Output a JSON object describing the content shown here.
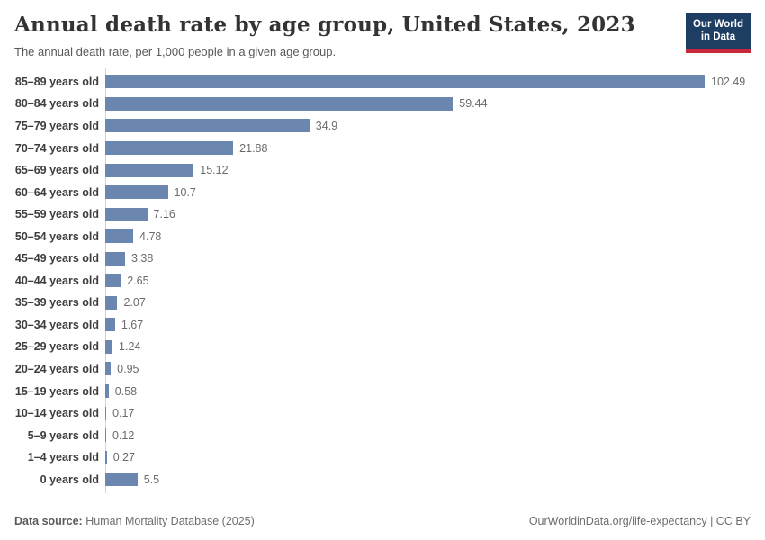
{
  "header": {
    "title": "Annual death rate by age group, United States, 2023",
    "subtitle": "The annual death rate, per 1,000 people in a given age group.",
    "logo": {
      "line1": "Our World",
      "line2": "in Data"
    }
  },
  "chart_data": {
    "type": "bar",
    "orientation": "horizontal",
    "title": "Annual death rate by age group, United States, 2023",
    "xlabel": "",
    "ylabel": "",
    "xlim": [
      0,
      102.49
    ],
    "grid": false,
    "legend": false,
    "bar_color": "#6c87af",
    "categories": [
      "85–89 years old",
      "80–84 years old",
      "75–79 years old",
      "70–74 years old",
      "65–69 years old",
      "60–64 years old",
      "55–59 years old",
      "50–54 years old",
      "45–49 years old",
      "40–44 years old",
      "35–39 years old",
      "30–34 years old",
      "25–29 years old",
      "20–24 years old",
      "15–19 years old",
      "10–14 years old",
      "5–9 years old",
      "1–4 years old",
      "0 years old"
    ],
    "values": [
      102.49,
      59.44,
      34.9,
      21.88,
      15.12,
      10.7,
      7.16,
      4.78,
      3.38,
      2.65,
      2.07,
      1.67,
      1.24,
      0.95,
      0.58,
      0.17,
      0.12,
      0.27,
      5.5
    ],
    "value_labels": [
      "102.49",
      "59.44",
      "34.9",
      "21.88",
      "15.12",
      "10.7",
      "7.16",
      "4.78",
      "3.38",
      "2.65",
      "2.07",
      "1.67",
      "1.24",
      "0.95",
      "0.58",
      "0.17",
      "0.12",
      "0.27",
      "5.5"
    ]
  },
  "footer": {
    "source_label": "Data source:",
    "source_text": " Human Mortality Database (2025)",
    "right_text": "OurWorldinData.org/life-expectancy | CC BY"
  },
  "colors": {
    "bar": "#6c87af",
    "logo_bg": "#1d3d63",
    "logo_stripe": "#c9283c",
    "axis_line": "#d4d4d4"
  }
}
